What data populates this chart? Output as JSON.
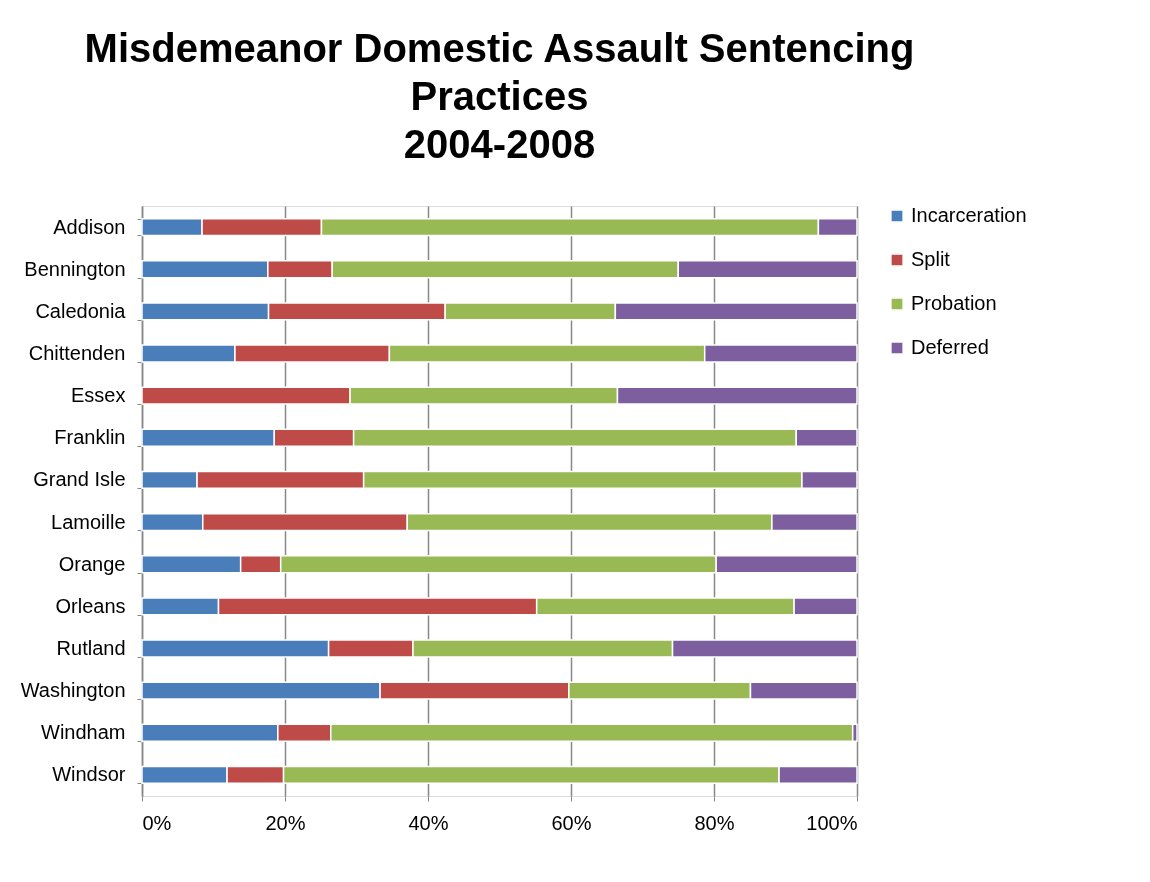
{
  "chart_data": {
    "type": "bar",
    "orientation": "horizontal",
    "stacked": true,
    "title": "Misdemeanor Domestic Assault Sentencing Practices\n2004-2008",
    "categories": [
      "Addison",
      "Bennington",
      "Caledonia",
      "Chittenden",
      "Essex",
      "Franklin",
      "Grand Isle",
      "Lamoille",
      "Orange",
      "Orleans",
      "Rutland",
      "Washington",
      "Windham",
      "Windsor"
    ],
    "series": [
      {
        "name": "Incarceration",
        "color": "#4a7ebb",
        "values": [
          8.4,
          17.6,
          17.7,
          13.0,
          0,
          18.5,
          7.7,
          8.5,
          13.8,
          10.7,
          26.1,
          33.3,
          19.0,
          11.9
        ]
      },
      {
        "name": "Split",
        "color": "#be4b48",
        "values": [
          16.7,
          9.0,
          24.7,
          21.6,
          29.1,
          11.1,
          23.3,
          28.6,
          5.6,
          44.5,
          11.8,
          26.4,
          7.4,
          7.9
        ]
      },
      {
        "name": "Probation",
        "color": "#98b954",
        "values": [
          69.5,
          48.4,
          23.8,
          44.1,
          37.4,
          61.9,
          61.3,
          51.0,
          60.9,
          36.0,
          36.3,
          25.4,
          73.0,
          69.3
        ]
      },
      {
        "name": "Deferred",
        "color": "#7d5fa0",
        "values": [
          5.4,
          25.0,
          33.8,
          21.3,
          33.5,
          8.5,
          7.7,
          11.9,
          19.7,
          8.8,
          25.8,
          14.9,
          0.6,
          10.9
        ]
      }
    ],
    "xlim": [
      0,
      100
    ],
    "xticks": [
      {
        "value": 0,
        "label": "0%"
      },
      {
        "value": 20,
        "label": "20%"
      },
      {
        "value": 40,
        "label": "40%"
      },
      {
        "value": 60,
        "label": "60%"
      },
      {
        "value": 80,
        "label": "80%"
      },
      {
        "value": 100,
        "label": "100%"
      }
    ],
    "grid": "x",
    "legend": "right"
  }
}
